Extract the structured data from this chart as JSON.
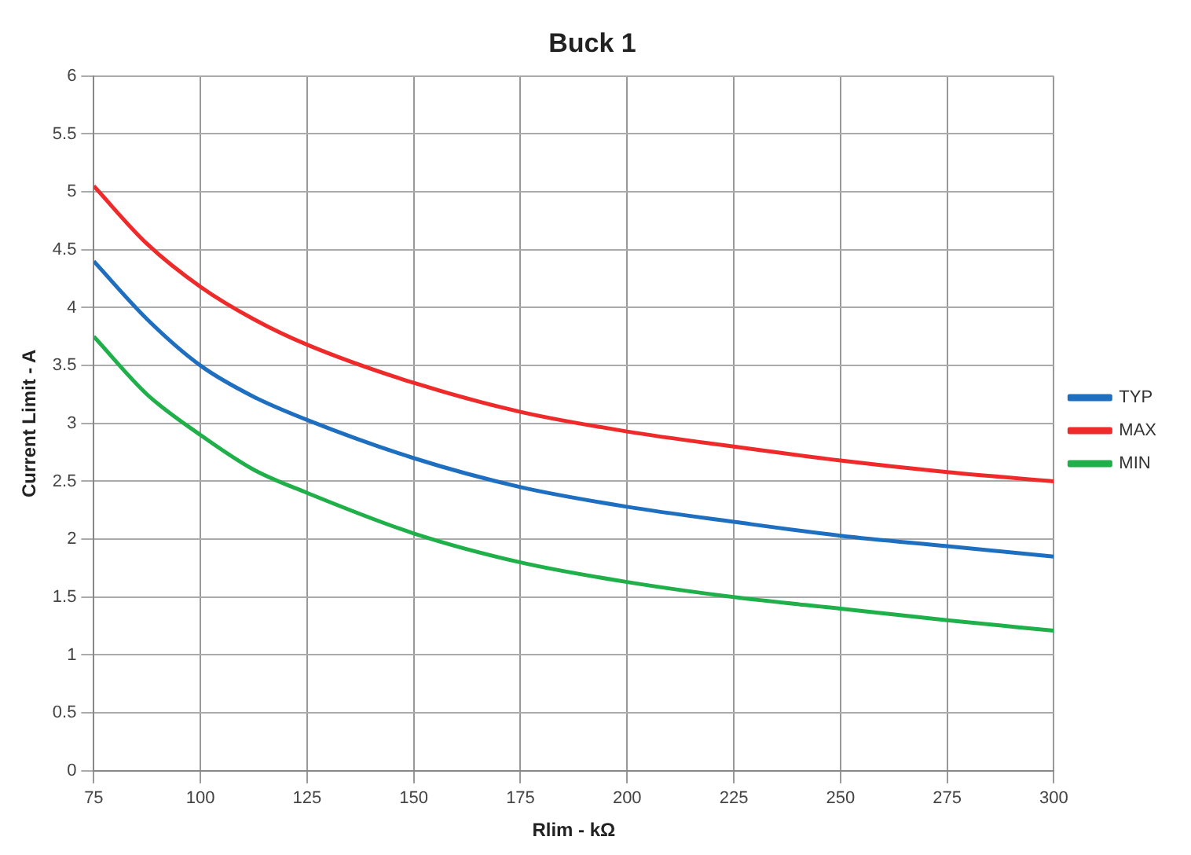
{
  "chart_data": {
    "type": "line",
    "title": "Buck 1",
    "xlabel": "Rlim - kΩ",
    "ylabel": "Current Limit - A",
    "x": [
      75,
      87.5,
      100,
      112.5,
      125,
      150,
      175,
      200,
      225,
      250,
      275,
      300
    ],
    "series": [
      {
        "name": "TYP",
        "color": "#1f6fc0",
        "values": [
          4.4,
          3.9,
          3.5,
          3.23,
          3.03,
          2.7,
          2.45,
          2.28,
          2.15,
          2.03,
          1.94,
          1.85
        ]
      },
      {
        "name": "MAX",
        "color": "#ee2a2a",
        "values": [
          5.05,
          4.55,
          4.18,
          3.9,
          3.68,
          3.35,
          3.1,
          2.93,
          2.8,
          2.68,
          2.58,
          2.5
        ]
      },
      {
        "name": "MIN",
        "color": "#1fb04a",
        "values": [
          3.75,
          3.25,
          2.9,
          2.6,
          2.4,
          2.05,
          1.8,
          1.63,
          1.5,
          1.4,
          1.3,
          1.21
        ]
      }
    ],
    "xlim": [
      75,
      300
    ],
    "xticks": [
      75,
      100,
      125,
      150,
      175,
      200,
      225,
      250,
      275,
      300
    ],
    "ylim": [
      0,
      6
    ],
    "yticks": [
      0,
      0.5,
      1,
      1.5,
      2,
      2.5,
      3,
      3.5,
      4,
      4.5,
      5,
      5.5,
      6
    ],
    "grid": true,
    "legend": "right",
    "marker": "none",
    "line_style": "solid"
  }
}
